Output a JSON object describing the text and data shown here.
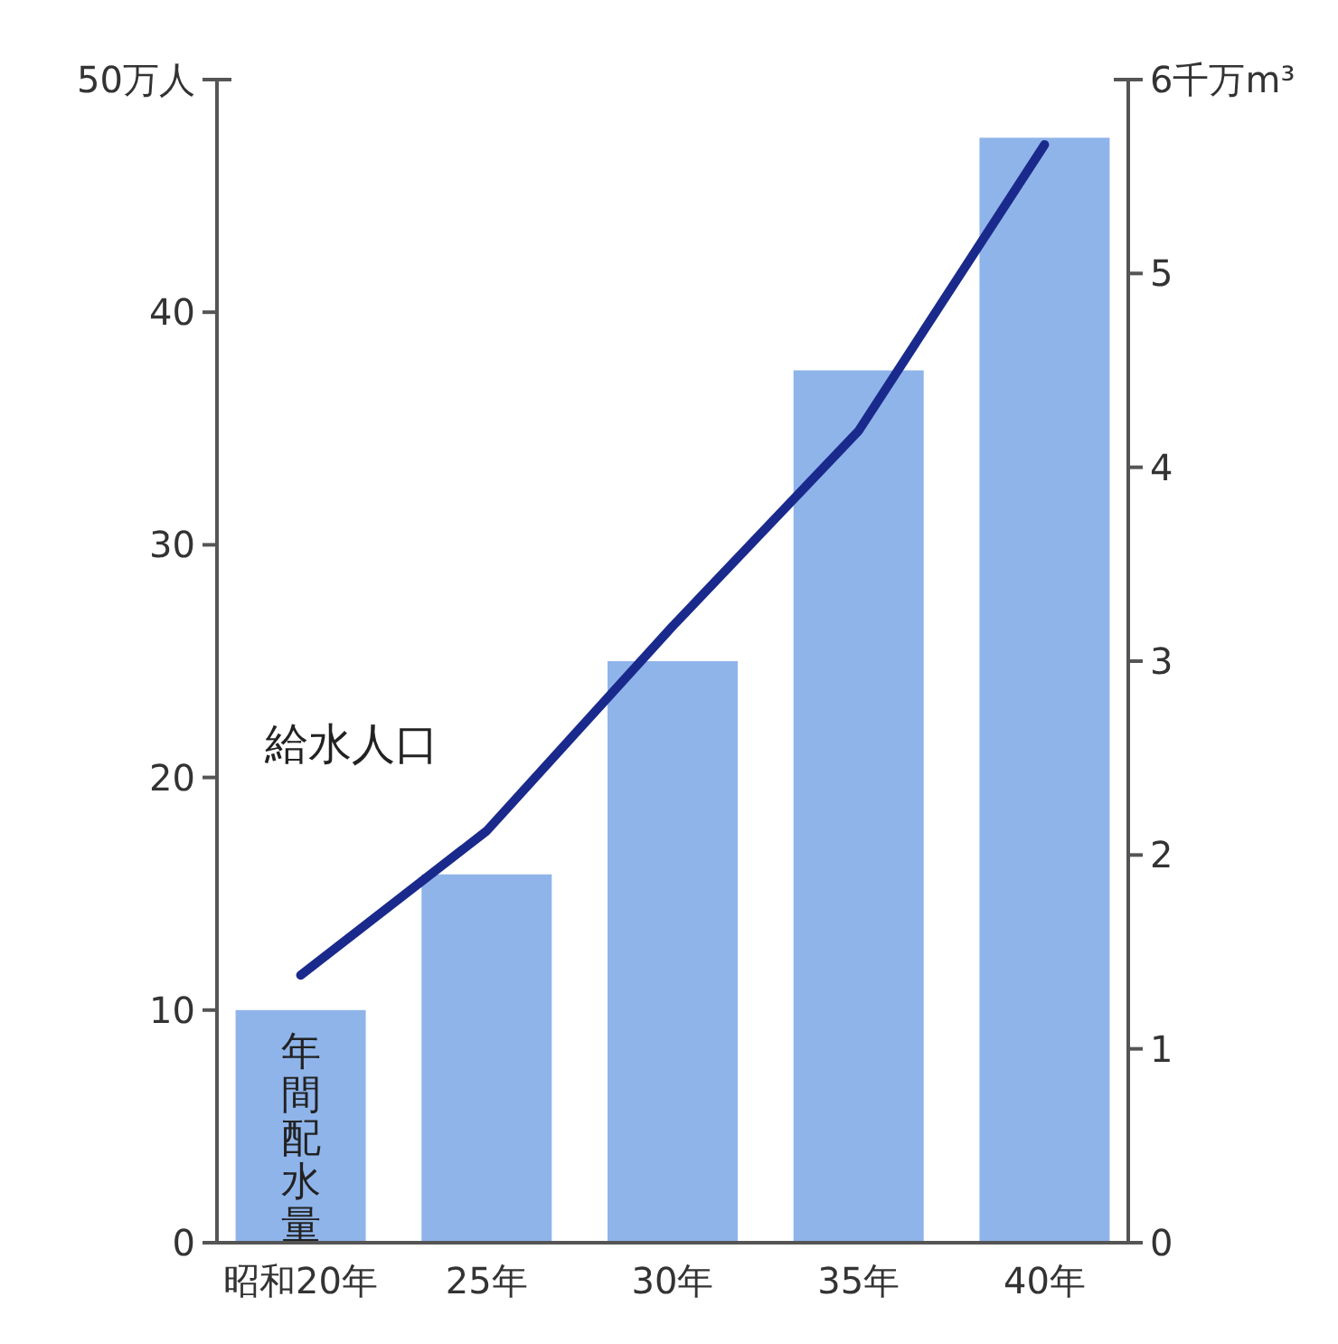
{
  "chart_data": {
    "type": "bar",
    "categories": [
      "昭和20年",
      "25年",
      "30年",
      "35年",
      "40年"
    ],
    "series": [
      {
        "name": "年間配水量",
        "axis": "y2",
        "color": "#8fb4ea",
        "values": [
          1.2,
          1.9,
          3.0,
          4.5,
          5.7
        ]
      },
      {
        "name": "給水人口",
        "type": "line",
        "axis": "y",
        "color": "#1a2a8c",
        "values": [
          11.5,
          17.7,
          26.5,
          34.9,
          47.2
        ]
      }
    ],
    "ylim": [
      0,
      50
    ],
    "yticks": [
      0,
      10,
      20,
      30,
      40,
      {
        "value": 50,
        "label": "50万人"
      }
    ],
    "y2lim": [
      0,
      6
    ],
    "y2ticks": [
      0,
      1,
      2,
      3,
      4,
      5,
      {
        "value": 6,
        "label": "6千万m³"
      }
    ],
    "grid": false,
    "marker": "none",
    "line_style": "solid"
  }
}
